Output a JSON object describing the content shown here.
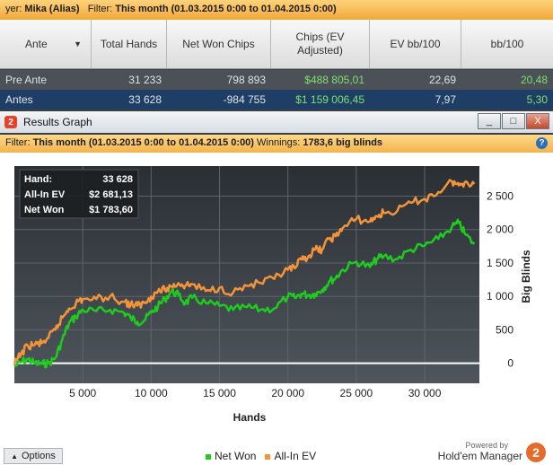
{
  "filter_bar": {
    "player_prefix": "yer:",
    "player_name": "Mika (Alias)",
    "filter_label": "Filter:",
    "filter_value": "This month (01.03.2015 0:00 to 01.04.2015 0:00)"
  },
  "stats_table": {
    "headers": [
      "Ante",
      "Total Hands",
      "Net Won Chips",
      "Chips (EV Adjusted)",
      "EV bb/100",
      "bb/100"
    ],
    "rows": [
      [
        "Pre Ante",
        "31 233",
        "798 893",
        "$488 805,01",
        "22,69",
        "20,48"
      ],
      [
        "Antes",
        "33 628",
        "-984 755",
        "$1 159 006,45",
        "7,97",
        "5,30"
      ]
    ]
  },
  "window": {
    "app_icon": "2",
    "title": "Results Graph",
    "buttons": [
      "_",
      "□",
      "X"
    ]
  },
  "graph_filter": {
    "filter_label": "Filter:",
    "filter_value": "This month (01.03.2015 0:00 to 01.04.2015 0:00)",
    "winnings_label": "Winnings:",
    "winnings_value": "1783,6 big blinds",
    "help": "?"
  },
  "info_box": {
    "rows": [
      {
        "label": "Hand:",
        "value": "33 628"
      },
      {
        "label": "All-In EV",
        "value": "$2 681,13"
      },
      {
        "label": "Net Won",
        "value": "$1 783,60"
      }
    ]
  },
  "bottom": {
    "options_label": "Options",
    "options_icon": "up-arrow-icon",
    "legend": [
      {
        "label": "Net Won",
        "color": "#1ecb1e"
      },
      {
        "label": "All-In EV",
        "color": "#f4943a"
      }
    ],
    "powered_by": "Powered by",
    "brand": "Hold'em Manager",
    "brand_logo": "2"
  },
  "chart_data": {
    "type": "line",
    "title": "",
    "xlabel": "Hands",
    "ylabel": "Big Blinds",
    "xlim": [
      0,
      34000
    ],
    "ylim": [
      -300,
      2950
    ],
    "x_ticks": [
      5000,
      10000,
      15000,
      20000,
      25000,
      30000
    ],
    "x_tick_labels": [
      "5 000",
      "10 000",
      "15 000",
      "20 000",
      "25 000",
      "30 000"
    ],
    "y_ticks": [
      0,
      500,
      1000,
      1500,
      2000,
      2500
    ],
    "y_tick_labels": [
      "0",
      "500",
      "1 000",
      "1 500",
      "2 000",
      "2 500"
    ],
    "grid": true,
    "legend_position": "bottom",
    "series": [
      {
        "name": "Net Won",
        "color": "#1ecb1e",
        "x": [
          0,
          500,
          1000,
          1500,
          2000,
          2500,
          3000,
          3500,
          4000,
          4500,
          5000,
          6000,
          7000,
          8000,
          8500,
          9000,
          9500,
          10000,
          10500,
          11000,
          11500,
          12000,
          12500,
          13000,
          14000,
          15000,
          16000,
          17000,
          18000,
          19000,
          20000,
          20500,
          21000,
          21500,
          22000,
          22500,
          23000,
          23500,
          24000,
          25000,
          26000,
          26500,
          27000,
          28000,
          29000,
          30000,
          31000,
          32000,
          32500,
          33000,
          33628
        ],
        "y": [
          -50,
          20,
          60,
          0,
          -10,
          0,
          80,
          350,
          600,
          700,
          800,
          780,
          800,
          760,
          680,
          620,
          640,
          760,
          850,
          960,
          1080,
          1020,
          900,
          980,
          900,
          860,
          800,
          840,
          800,
          820,
          1000,
          980,
          1040,
          1020,
          1040,
          1100,
          1220,
          1280,
          1400,
          1520,
          1440,
          1560,
          1600,
          1560,
          1700,
          1760,
          1860,
          2040,
          2100,
          1920,
          1783.6
        ]
      },
      {
        "name": "All-In EV",
        "color": "#f4943a",
        "x": [
          0,
          500,
          1000,
          1500,
          2000,
          2500,
          3000,
          3500,
          4000,
          4500,
          5000,
          6000,
          7000,
          8000,
          8500,
          9000,
          9500,
          10000,
          10500,
          11000,
          11500,
          12000,
          12500,
          13000,
          14000,
          15000,
          16000,
          17000,
          18000,
          19000,
          20000,
          20500,
          21000,
          21500,
          22000,
          22500,
          23000,
          23500,
          24000,
          25000,
          26000,
          26500,
          27000,
          28000,
          29000,
          30000,
          31000,
          32000,
          32500,
          33000,
          33628
        ],
        "y": [
          -20,
          150,
          260,
          280,
          300,
          380,
          500,
          680,
          820,
          900,
          960,
          960,
          1000,
          920,
          880,
          860,
          900,
          1000,
          1080,
          1100,
          1150,
          1200,
          1160,
          1180,
          1080,
          1130,
          1060,
          1160,
          1200,
          1260,
          1400,
          1420,
          1550,
          1600,
          1700,
          1700,
          1860,
          1900,
          2020,
          2160,
          2120,
          2200,
          2250,
          2280,
          2400,
          2460,
          2560,
          2720,
          2660,
          2720,
          2681.1
        ]
      }
    ]
  }
}
